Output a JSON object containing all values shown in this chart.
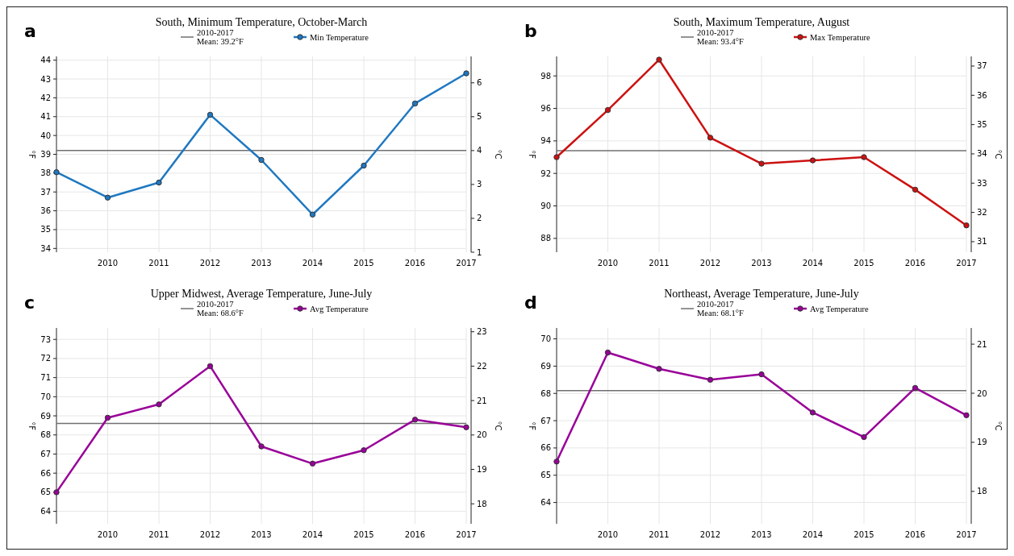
{
  "chart_data": [
    {
      "type": "line",
      "title": "South, Minimum Temperature, October-March",
      "annotations": [
        "a"
      ],
      "ylabel": "°F",
      "y2label": "°C",
      "x": [
        2009,
        2010,
        2011,
        2012,
        2013,
        2014,
        2015,
        2016,
        2017
      ],
      "xlim": [
        2009,
        2017
      ],
      "xticks": [
        2010,
        2011,
        2012,
        2013,
        2014,
        2015,
        2016,
        2017
      ],
      "ylim": [
        33.8,
        44.2
      ],
      "yticks": [
        34,
        35,
        36,
        37,
        38,
        39,
        40,
        41,
        42,
        43,
        44
      ],
      "y2lim": [
        1,
        6.78
      ],
      "y2ticks": [
        1,
        2,
        3,
        4,
        5,
        6
      ],
      "grid": true,
      "legend": "top",
      "marker": "circle",
      "series": [
        {
          "name": "Min Temperature",
          "color": "#1f78c1",
          "values": [
            38.05,
            36.7,
            37.5,
            41.1,
            38.7,
            35.8,
            38.4,
            41.7,
            43.3
          ]
        }
      ],
      "ref_lines": [
        {
          "axis": "y",
          "value": 39.2,
          "label": "2010-2017\nMean: 39.2°F",
          "color": "#707070"
        }
      ]
    },
    {
      "type": "line",
      "title": "South, Maximum Temperature, August",
      "annotations": [
        "b"
      ],
      "ylabel": "°F",
      "y2label": "°C",
      "x": [
        2009,
        2010,
        2011,
        2012,
        2013,
        2014,
        2015,
        2016,
        2017
      ],
      "xlim": [
        2009,
        2017
      ],
      "xticks": [
        2010,
        2011,
        2012,
        2013,
        2014,
        2015,
        2016,
        2017
      ],
      "ylim": [
        87.15,
        99.2
      ],
      "yticks": [
        88,
        90,
        92,
        94,
        96,
        98
      ],
      "y2lim": [
        30.64,
        37.33
      ],
      "y2ticks": [
        31,
        32,
        33,
        34,
        35,
        36,
        37
      ],
      "grid": true,
      "legend": "top",
      "marker": "circle",
      "series": [
        {
          "name": "Max Temperature",
          "color": "#cc1111",
          "values": [
            93.0,
            95.9,
            99.0,
            94.2,
            92.6,
            92.8,
            93.0,
            91.0,
            88.8
          ]
        }
      ],
      "ref_lines": [
        {
          "axis": "y",
          "value": 93.4,
          "label": "2010-2017\nMean: 93.4°F",
          "color": "#707070"
        }
      ]
    },
    {
      "type": "line",
      "title": "Upper Midwest, Average Temperature, June-July",
      "annotations": [
        "c"
      ],
      "ylabel": "°F",
      "y2label": "°C",
      "x": [
        2009,
        2010,
        2011,
        2012,
        2013,
        2014,
        2015,
        2016,
        2017
      ],
      "xlim": [
        2009,
        2017
      ],
      "xticks": [
        2010,
        2011,
        2012,
        2013,
        2014,
        2015,
        2016,
        2017
      ],
      "ylim": [
        63.35,
        73.6
      ],
      "yticks": [
        64,
        65,
        66,
        67,
        68,
        69,
        70,
        71,
        72,
        73
      ],
      "y2lim": [
        17.42,
        23.11
      ],
      "y2ticks": [
        18,
        19,
        20,
        21,
        22,
        23
      ],
      "grid": true,
      "legend": "top",
      "marker": "circle",
      "series": [
        {
          "name": "Avg Temperature",
          "color": "#990099",
          "values": [
            65.0,
            68.9,
            69.6,
            71.6,
            67.4,
            66.5,
            67.2,
            68.8,
            68.4
          ]
        }
      ],
      "ref_lines": [
        {
          "axis": "y",
          "value": 68.6,
          "label": "2010-2017\nMean: 68.6°F",
          "color": "#707070"
        }
      ]
    },
    {
      "type": "line",
      "title": "Northeast, Average Temperature, June-July",
      "annotations": [
        "d"
      ],
      "ylabel": "°F",
      "y2label": "°C",
      "x": [
        2009,
        2010,
        2011,
        2012,
        2013,
        2014,
        2015,
        2016,
        2017
      ],
      "xlim": [
        2009,
        2017
      ],
      "xticks": [
        2010,
        2011,
        2012,
        2013,
        2014,
        2015,
        2016,
        2017
      ],
      "ylim": [
        63.22,
        70.4
      ],
      "yticks": [
        64,
        65,
        66,
        67,
        68,
        69,
        70
      ],
      "y2lim": [
        17.34,
        21.33
      ],
      "y2ticks": [
        18,
        19,
        20,
        21
      ],
      "grid": true,
      "legend": "top",
      "marker": "circle",
      "series": [
        {
          "name": "Avg Temperature",
          "color": "#990099",
          "values": [
            65.5,
            69.5,
            68.9,
            68.5,
            68.7,
            67.3,
            66.4,
            68.2,
            67.2
          ]
        }
      ],
      "ref_lines": [
        {
          "axis": "y",
          "value": 68.1,
          "label": "2010-2017\nMean: 68.1°F",
          "color": "#707070"
        }
      ]
    }
  ]
}
